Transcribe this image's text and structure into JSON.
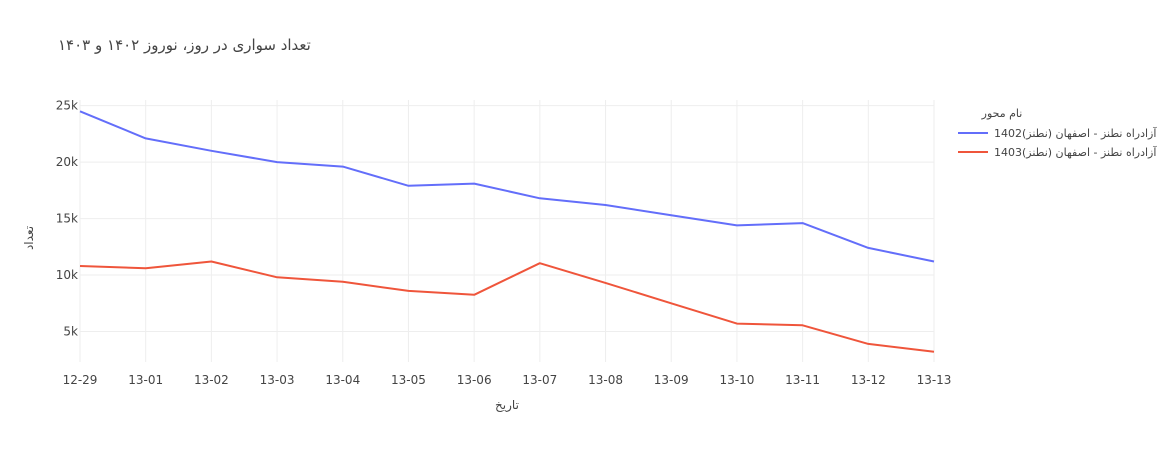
{
  "chart_data": {
    "type": "line",
    "title": "تعداد سواری در روز، نوروز ۱۴۰۲ و ۱۴۰۳",
    "xlabel": "تاریخ",
    "ylabel": "تعداد",
    "categories": [
      "12-29",
      "13-01",
      "13-02",
      "13-03",
      "13-04",
      "13-05",
      "13-06",
      "13-07",
      "13-08",
      "13-09",
      "13-10",
      "13-11",
      "13-12",
      "13-13"
    ],
    "yticks": [
      5000,
      10000,
      15000,
      20000,
      25000
    ],
    "ytick_labels": [
      "5k",
      "10k",
      "15k",
      "20k",
      "25k"
    ],
    "ylim": [
      2300,
      25500
    ],
    "grid": true,
    "legend": {
      "title": "نام محور",
      "placement": "right"
    },
    "series": [
      {
        "name": "آزادراه نطنز - اصفهان (نطنز)1402",
        "color": "#636efa",
        "values": [
          24500,
          22100,
          21000,
          20000,
          19600,
          17900,
          18100,
          16800,
          16200,
          15300,
          14400,
          14600,
          12400,
          11200
        ]
      },
      {
        "name": "آزادراه نطنز - اصفهان (نطنز)1403",
        "color": "#ef553b",
        "values": [
          10800,
          10600,
          11200,
          9800,
          9400,
          8600,
          8250,
          11050,
          9300,
          7500,
          5700,
          5550,
          3900,
          3200
        ]
      }
    ]
  }
}
